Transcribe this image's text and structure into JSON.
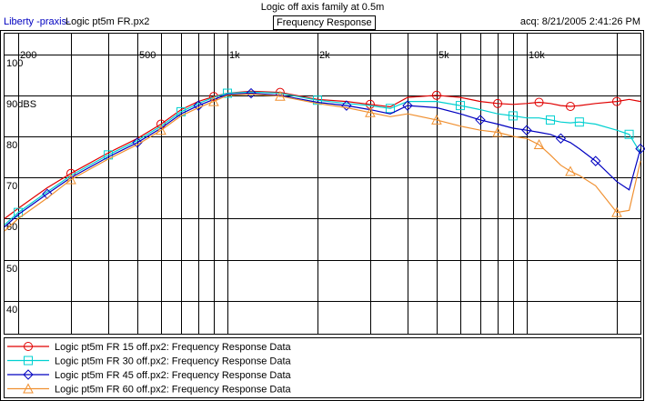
{
  "header": {
    "title": "Logic off axis family at 0.5m",
    "app_name": "Liberty -praxis-",
    "file_name": "Logic pt5m FR.px2",
    "measurement_type": "Frequency Response",
    "acquired": "acq: 8/21/2005 2:41:26 PM"
  },
  "chart_data": {
    "type": "line",
    "title": "Logic off axis family at 0.5m",
    "xlabel": "",
    "ylabel": "",
    "x_scale": "log",
    "xlim": [
      180,
      24000
    ],
    "ylim": [
      32,
      105
    ],
    "grid": true,
    "legend_position": "bottom",
    "x_ticks": [
      {
        "value": 200,
        "label": "200"
      },
      {
        "value": 500,
        "label": "500"
      },
      {
        "value": 1000,
        "label": "1k"
      },
      {
        "value": 2000,
        "label": "2k"
      },
      {
        "value": 5000,
        "label": "5k"
      },
      {
        "value": 10000,
        "label": "10k"
      }
    ],
    "x_grid_minor": [
      300,
      400,
      600,
      700,
      800,
      900,
      3000,
      4000,
      6000,
      7000,
      8000,
      9000,
      20000
    ],
    "y_ticks": [
      {
        "value": 100,
        "label": "100"
      },
      {
        "value": 90,
        "label": "90dBS"
      },
      {
        "value": 80,
        "label": "80"
      },
      {
        "value": 70,
        "label": "70"
      },
      {
        "value": 60,
        "label": "60"
      },
      {
        "value": 50,
        "label": "50"
      },
      {
        "value": 40,
        "label": "40"
      }
    ],
    "y_grid": [
      40,
      50,
      60,
      70,
      80,
      90,
      100
    ],
    "x": [
      180,
      200,
      250,
      300,
      400,
      500,
      600,
      700,
      800,
      900,
      1000,
      1200,
      1500,
      2000,
      2500,
      3000,
      3500,
      4000,
      5000,
      6000,
      7000,
      8000,
      9000,
      10000,
      11000,
      12000,
      13000,
      14000,
      15000,
      17000,
      20000,
      22000,
      24000
    ],
    "series": [
      {
        "name": "Logic pt5m FR 15 off.px2:  Frequency Response Data",
        "color": "#e00000",
        "marker": "circle",
        "values": [
          60,
          62.5,
          67.5,
          71,
          76,
          79.5,
          83,
          86.5,
          88.5,
          89.7,
          90.5,
          91,
          90.7,
          89,
          88.5,
          87.8,
          87.2,
          89.5,
          90,
          89.5,
          88.5,
          88,
          87.8,
          88,
          88.3,
          88,
          87.5,
          87.3,
          87.5,
          88,
          88.5,
          89,
          88.5
        ]
      },
      {
        "name": "Logic pt5m FR 30 off.px2:  Frequency Response Data",
        "color": "#00d0d0",
        "marker": "square",
        "values": [
          58.5,
          61.5,
          66.5,
          70.5,
          75.5,
          79,
          82.5,
          86,
          88,
          89.5,
          90.5,
          90.8,
          90.5,
          88.8,
          88,
          87.5,
          86.8,
          88.5,
          88.5,
          87.5,
          86.5,
          85.5,
          85,
          84.5,
          84.5,
          84,
          83.5,
          83.3,
          83.5,
          83,
          81.5,
          80.5,
          76
        ]
      },
      {
        "name": "Logic pt5m FR 45 off.px2:  Frequency Response Data",
        "color": "#0000c0",
        "marker": "diamond",
        "values": [
          58,
          61,
          66,
          70,
          75,
          78.5,
          82,
          85.5,
          87.5,
          89,
          90.2,
          90.5,
          90,
          88.3,
          87.5,
          86.5,
          85.5,
          87.5,
          87,
          85.5,
          84,
          83,
          82,
          81.5,
          81,
          80.5,
          79.5,
          78.5,
          77,
          74,
          69,
          67,
          77
        ]
      },
      {
        "name": "Logic pt5m FR 60 off.px2:  Frequency Response Data",
        "color": "#f09030",
        "marker": "triangle",
        "values": [
          57,
          60,
          65,
          69.5,
          74.5,
          78,
          81.5,
          85,
          87,
          88.5,
          90,
          90.3,
          89.8,
          88,
          87,
          85.8,
          84.8,
          85.5,
          84,
          82.5,
          81.5,
          81,
          80,
          79.5,
          78,
          75.5,
          73,
          71.5,
          70.5,
          68,
          61.5,
          62,
          74
        ]
      }
    ]
  }
}
